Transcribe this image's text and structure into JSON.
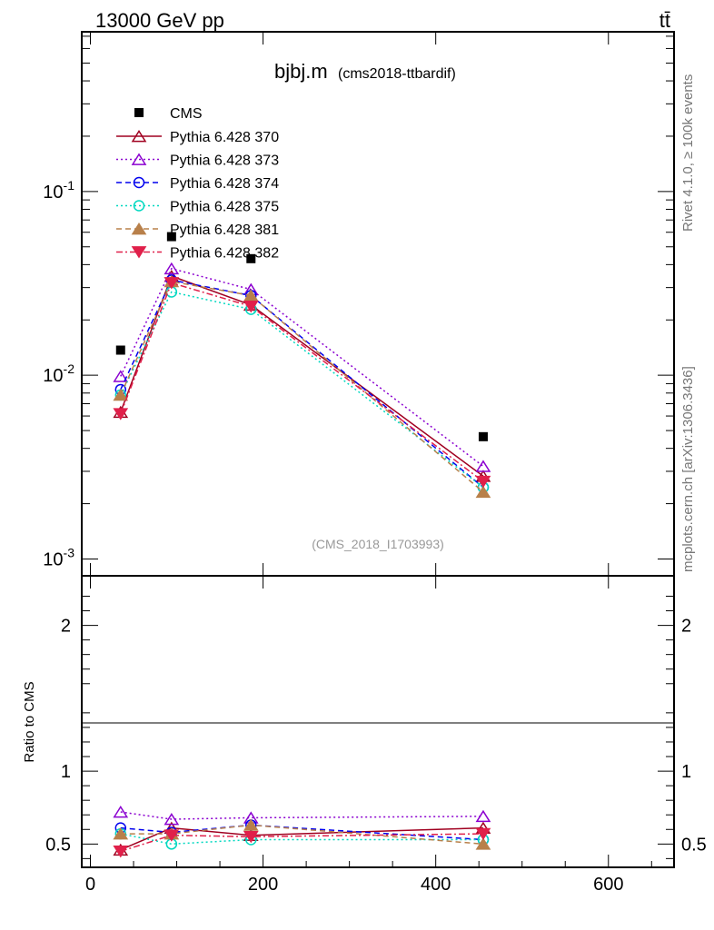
{
  "header": {
    "left": "13000 GeV pp",
    "right": "tt̄"
  },
  "side_text": {
    "rivet": "Rivet 4.1.0, ≥ 100k events",
    "mcplots": "mcplots.cern.ch [arXiv:1306.3436]"
  },
  "chart_data": {
    "type": "line",
    "title": "bjbj.m",
    "subtitle": "(cms2018-ttbardif)",
    "watermark": "(CMS_2018_I1703993)",
    "xlabel": "",
    "ylabel": "",
    "ratio_ylabel": "Ratio to CMS",
    "xlim": [
      -10,
      676
    ],
    "ylim": [
      0.00081,
      0.74
    ],
    "yscale": "log",
    "ratio_ylim": [
      0.34,
      2.34
    ],
    "x_ticks": [
      "0",
      "200",
      "400",
      "600"
    ],
    "x_tick_values": [
      0,
      200,
      400,
      600
    ],
    "y_ticks": [
      "10^-1",
      "10^-2",
      "10^-3"
    ],
    "y_tick_values": [
      0.1,
      0.01,
      0.001
    ],
    "ratio_ticks": [
      "0.5",
      "1",
      "2"
    ],
    "ratio_tick_values": [
      0.5,
      1,
      2
    ],
    "legend_position": "top-left",
    "x": [
      35,
      94,
      186,
      455
    ],
    "data": {
      "name": "CMS",
      "values": [
        0.0137,
        0.0568,
        0.0431,
        0.00463
      ]
    },
    "series": [
      {
        "name": "Pythia 6.428 370",
        "color": "#a00020",
        "dash": "",
        "marker": "tri-open",
        "ratio": [
          0.46,
          0.61,
          0.56,
          0.61
        ]
      },
      {
        "name": "Pythia 6.428 373",
        "color": "#8b00d0",
        "dash": "2,3",
        "marker": "tri-open",
        "ratio": [
          0.72,
          0.67,
          0.68,
          0.69
        ]
      },
      {
        "name": "Pythia 6.428 374",
        "color": "#0000ee",
        "dash": "6,4",
        "marker": "circle-open",
        "ratio": [
          0.61,
          0.58,
          0.63,
          0.53
        ]
      },
      {
        "name": "Pythia 6.428 375",
        "color": "#00d8c0",
        "dash": "2,3",
        "marker": "circle-open",
        "ratio": [
          0.57,
          0.5,
          0.53,
          0.53
        ]
      },
      {
        "name": "Pythia 6.428 381",
        "color": "#b8804a",
        "dash": "6,4",
        "marker": "tri-filled",
        "ratio": [
          0.57,
          0.57,
          0.63,
          0.5
        ]
      },
      {
        "name": "Pythia 6.428 382",
        "color": "#e0204a",
        "dash": "7,3,2,3",
        "marker": "tri-down-filled",
        "ratio": [
          0.45,
          0.56,
          0.55,
          0.57
        ]
      }
    ]
  }
}
